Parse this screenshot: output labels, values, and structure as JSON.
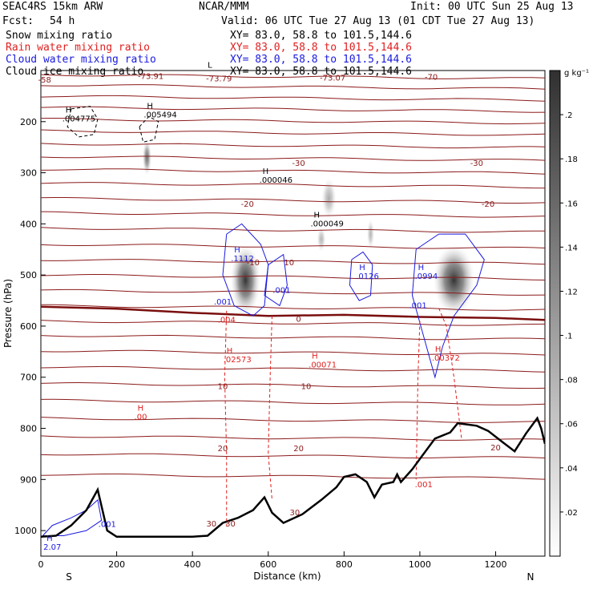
{
  "header": {
    "model": "SEAC4RS 15km ARW",
    "org": "NCAR/MMM",
    "init": "Init: 00 UTC Sun 25 Aug 13",
    "fcst_label": "Fcst:",
    "fcst_value": "54 h",
    "valid": "Valid: 06 UTC Tue 27 Aug 13 (01 CDT Tue 27 Aug 13)",
    "fields": [
      {
        "name": "Snow mixing ratio",
        "xy": "XY=  83.0, 58.8 to 101.5,144.6",
        "color": "#000000"
      },
      {
        "name": "Rain water mixing ratio",
        "xy": "XY=  83.0, 58.8 to 101.5,144.6",
        "color": "#e02020"
      },
      {
        "name": "Cloud water mixing ratio",
        "xy": "XY=  83.0, 58.8 to 101.5,144.6",
        "color": "#1a1ae0"
      },
      {
        "name": "Cloud ice mixing ratio",
        "xy": "XY=  83.0, 58.8 to 101.5,144.6",
        "color": "#000000"
      }
    ]
  },
  "chart_data": {
    "type": "cross-section",
    "xlabel": "Distance (km)",
    "ylabel": "Pressure (hPa)",
    "xlim": [
      0,
      1330
    ],
    "ylim": [
      1050,
      100
    ],
    "x_ticks": [
      0,
      200,
      400,
      600,
      800,
      1000,
      1200
    ],
    "y_ticks": [
      200,
      300,
      400,
      500,
      600,
      700,
      800,
      900,
      1000
    ],
    "y_tick_labels": [
      "200",
      "300",
      "400",
      "500",
      "600",
      "700",
      "800",
      "900",
      "1000"
    ],
    "left_end_label": "S",
    "right_end_label": "N",
    "colorbar": {
      "unit": "g kg⁻¹",
      "ticks": [
        0.02,
        0.04,
        0.06,
        0.08,
        0.1,
        0.12,
        0.14,
        0.16,
        0.18,
        0.2
      ],
      "tick_labels": [
        ".02",
        ".04",
        ".06",
        ".08",
        ".1",
        ".12",
        ".14",
        ".16",
        ".18",
        ".2"
      ]
    },
    "isotherm_labels": [
      {
        "text": "-73.91",
        "x": 290,
        "p": 110,
        "color": "#8b1a1a"
      },
      {
        "text": "-73.79",
        "x": 470,
        "p": 115,
        "color": "#8b1a1a"
      },
      {
        "text": "-73.07",
        "x": 770,
        "p": 113,
        "color": "#8b1a1a"
      },
      {
        "text": "-70",
        "x": 1030,
        "p": 112,
        "color": "#8b1a1a"
      },
      {
        "text": "-58",
        "x": 10,
        "p": 117,
        "color": "#8b1a1a"
      },
      {
        "text": "-30",
        "x": 680,
        "p": 280,
        "color": "#8b1a1a"
      },
      {
        "text": "-30",
        "x": 1150,
        "p": 280,
        "color": "#8b1a1a"
      },
      {
        "text": "-20",
        "x": 545,
        "p": 360,
        "color": "#8b1a1a"
      },
      {
        "text": "-20",
        "x": 1180,
        "p": 360,
        "color": "#8b1a1a"
      },
      {
        "text": "-10",
        "x": 560,
        "p": 475,
        "color": "#8b1a1a"
      },
      {
        "text": "10",
        "x": 655,
        "p": 475,
        "color": "#8b1a1a"
      },
      {
        "text": "0",
        "x": 680,
        "p": 585,
        "color": "#8b1a1a"
      },
      {
        "text": "10",
        "x": 480,
        "p": 717,
        "color": "#8b1a1a"
      },
      {
        "text": "10",
        "x": 700,
        "p": 717,
        "color": "#8b1a1a"
      },
      {
        "text": "20",
        "x": 480,
        "p": 838,
        "color": "#8b1a1a"
      },
      {
        "text": "20",
        "x": 680,
        "p": 838,
        "color": "#8b1a1a"
      },
      {
        "text": "20",
        "x": 1200,
        "p": 837,
        "color": "#8b1a1a"
      },
      {
        "text": "30",
        "x": 450,
        "p": 986,
        "color": "#8b1a1a"
      },
      {
        "text": "30",
        "x": 500,
        "p": 986,
        "color": "#8b1a1a"
      },
      {
        "text": "30",
        "x": 670,
        "p": 964,
        "color": "#8b1a1a"
      }
    ],
    "extrema_labels": [
      {
        "letter": "H",
        "value": ".004775",
        "x": 65,
        "p": 192,
        "color": "#000000"
      },
      {
        "letter": "H",
        "value": ".005494",
        "x": 280,
        "p": 184,
        "color": "#000000"
      },
      {
        "letter": "H",
        "value": ".000046",
        "x": 585,
        "p": 312,
        "color": "#000000"
      },
      {
        "letter": "H",
        "value": ".000049",
        "x": 720,
        "p": 397,
        "color": "#000000"
      },
      {
        "letter": "L",
        "value": "",
        "x": 440,
        "p": 104,
        "color": "#000000"
      },
      {
        "letter": "H",
        "value": ".1112",
        "x": 510,
        "p": 465,
        "color": "#1a1ae0"
      },
      {
        "letter": "",
        "value": ".001",
        "x": 465,
        "p": 550,
        "color": "#1a1ae0"
      },
      {
        "letter": "",
        "value": ".001",
        "x": 620,
        "p": 527,
        "color": "#1a1ae0"
      },
      {
        "letter": "H",
        "value": ".0126",
        "x": 840,
        "p": 500,
        "color": "#1a1ae0"
      },
      {
        "letter": "H",
        "value": ".0994",
        "x": 995,
        "p": 500,
        "color": "#1a1ae0"
      },
      {
        "letter": "",
        "value": ".001",
        "x": 980,
        "p": 557,
        "color": "#1a1ae0"
      },
      {
        "letter": "",
        "value": ".001",
        "x": 160,
        "p": 985,
        "color": "#1a1ae0"
      },
      {
        "letter": "H",
        "value": "2.07",
        "x": 15,
        "p": 1030,
        "color": "#1a1ae0"
      },
      {
        "letter": "",
        "value": ".004",
        "x": 475,
        "p": 585,
        "color": "#e02020"
      },
      {
        "letter": "H",
        "value": ".02573",
        "x": 490,
        "p": 663,
        "color": "#e02020"
      },
      {
        "letter": "H",
        "value": ".00071",
        "x": 715,
        "p": 673,
        "color": "#e02020"
      },
      {
        "letter": "H",
        "value": ".00372",
        "x": 1040,
        "p": 660,
        "color": "#e02020"
      },
      {
        "letter": "H",
        "value": ".00",
        "x": 255,
        "p": 775,
        "color": "#e02020"
      },
      {
        "letter": "",
        "value": ".001",
        "x": 995,
        "p": 907,
        "color": "#e02020"
      }
    ],
    "isotherm_levels": [
      108,
      128,
      150,
      172,
      195,
      218,
      243,
      268,
      293,
      320,
      350,
      378,
      408,
      440,
      470,
      500,
      530,
      560,
      590,
      618,
      648,
      680,
      712,
      745,
      780,
      815,
      850,
      890
    ],
    "zero_isotherm": [
      [
        0,
        562
      ],
      [
        200,
        566
      ],
      [
        400,
        574
      ],
      [
        600,
        580
      ],
      [
        800,
        578
      ],
      [
        1000,
        582
      ],
      [
        1200,
        584
      ],
      [
        1330,
        588
      ]
    ],
    "terrain": [
      [
        0,
        1012
      ],
      [
        40,
        1010
      ],
      [
        80,
        990
      ],
      [
        120,
        960
      ],
      [
        150,
        920
      ],
      [
        175,
        1000
      ],
      [
        200,
        1012
      ],
      [
        400,
        1012
      ],
      [
        440,
        1010
      ],
      [
        480,
        985
      ],
      [
        520,
        975
      ],
      [
        560,
        960
      ],
      [
        590,
        935
      ],
      [
        610,
        965
      ],
      [
        640,
        985
      ],
      [
        690,
        968
      ],
      [
        740,
        940
      ],
      [
        780,
        915
      ],
      [
        800,
        895
      ],
      [
        830,
        890
      ],
      [
        860,
        905
      ],
      [
        880,
        935
      ],
      [
        900,
        910
      ],
      [
        930,
        905
      ],
      [
        940,
        890
      ],
      [
        950,
        905
      ],
      [
        980,
        880
      ],
      [
        1000,
        860
      ],
      [
        1040,
        820
      ],
      [
        1080,
        808
      ],
      [
        1100,
        790
      ],
      [
        1150,
        795
      ],
      [
        1180,
        805
      ],
      [
        1220,
        828
      ],
      [
        1250,
        845
      ],
      [
        1280,
        810
      ],
      [
        1310,
        780
      ],
      [
        1320,
        800
      ],
      [
        1330,
        830
      ]
    ],
    "cloud_water_contours": [
      [
        [
          490,
          420
        ],
        [
          480,
          500
        ],
        [
          510,
          560
        ],
        [
          560,
          580
        ],
        [
          590,
          560
        ],
        [
          600,
          480
        ],
        [
          580,
          440
        ],
        [
          530,
          400
        ],
        [
          490,
          420
        ]
      ],
      [
        [
          600,
          480
        ],
        [
          590,
          540
        ],
        [
          630,
          560
        ],
        [
          650,
          520
        ],
        [
          640,
          460
        ],
        [
          600,
          480
        ]
      ],
      [
        [
          820,
          470
        ],
        [
          815,
          520
        ],
        [
          840,
          550
        ],
        [
          870,
          540
        ],
        [
          875,
          480
        ],
        [
          850,
          455
        ],
        [
          820,
          470
        ]
      ],
      [
        [
          990,
          450
        ],
        [
          980,
          540
        ],
        [
          1010,
          620
        ],
        [
          1040,
          700
        ],
        [
          1060,
          640
        ],
        [
          1090,
          580
        ],
        [
          1150,
          520
        ],
        [
          1170,
          470
        ],
        [
          1120,
          420
        ],
        [
          1050,
          420
        ],
        [
          990,
          450
        ]
      ],
      [
        [
          5,
          1010
        ],
        [
          30,
          990
        ],
        [
          80,
          975
        ],
        [
          120,
          960
        ],
        [
          150,
          940
        ],
        [
          160,
          980
        ],
        [
          120,
          1000
        ],
        [
          60,
          1010
        ],
        [
          5,
          1010
        ]
      ]
    ],
    "rain_contours": [
      [
        [
          490,
          570
        ],
        [
          485,
          700
        ],
        [
          490,
          850
        ],
        [
          490,
          990
        ]
      ],
      [
        [
          610,
          580
        ],
        [
          605,
          700
        ],
        [
          600,
          850
        ],
        [
          610,
          940
        ]
      ],
      [
        [
          1000,
          590
        ],
        [
          995,
          700
        ],
        [
          990,
          900
        ]
      ],
      [
        [
          1050,
          565
        ],
        [
          1070,
          600
        ],
        [
          1090,
          700
        ],
        [
          1110,
          820
        ]
      ]
    ],
    "snow_contours": [
      [
        [
          80,
          175
        ],
        [
          70,
          210
        ],
        [
          100,
          230
        ],
        [
          140,
          225
        ],
        [
          150,
          195
        ],
        [
          130,
          170
        ],
        [
          80,
          175
        ]
      ],
      [
        [
          260,
          210
        ],
        [
          270,
          240
        ],
        [
          300,
          235
        ],
        [
          310,
          200
        ],
        [
          285,
          190
        ],
        [
          260,
          210
        ]
      ]
    ],
    "shading_blobs": [
      {
        "x": 540,
        "p": 510,
        "rx": 40,
        "rp": 70,
        "level": 0.2
      },
      {
        "x": 1090,
        "p": 510,
        "rx": 55,
        "rp": 70,
        "level": 0.2
      },
      {
        "x": 280,
        "p": 270,
        "rx": 12,
        "rp": 35,
        "level": 0.12
      },
      {
        "x": 760,
        "p": 350,
        "rx": 20,
        "rp": 40,
        "level": 0.04
      },
      {
        "x": 870,
        "p": 420,
        "rx": 10,
        "rp": 30,
        "level": 0.03
      },
      {
        "x": 740,
        "p": 430,
        "rx": 12,
        "rp": 25,
        "level": 0.03
      }
    ]
  }
}
